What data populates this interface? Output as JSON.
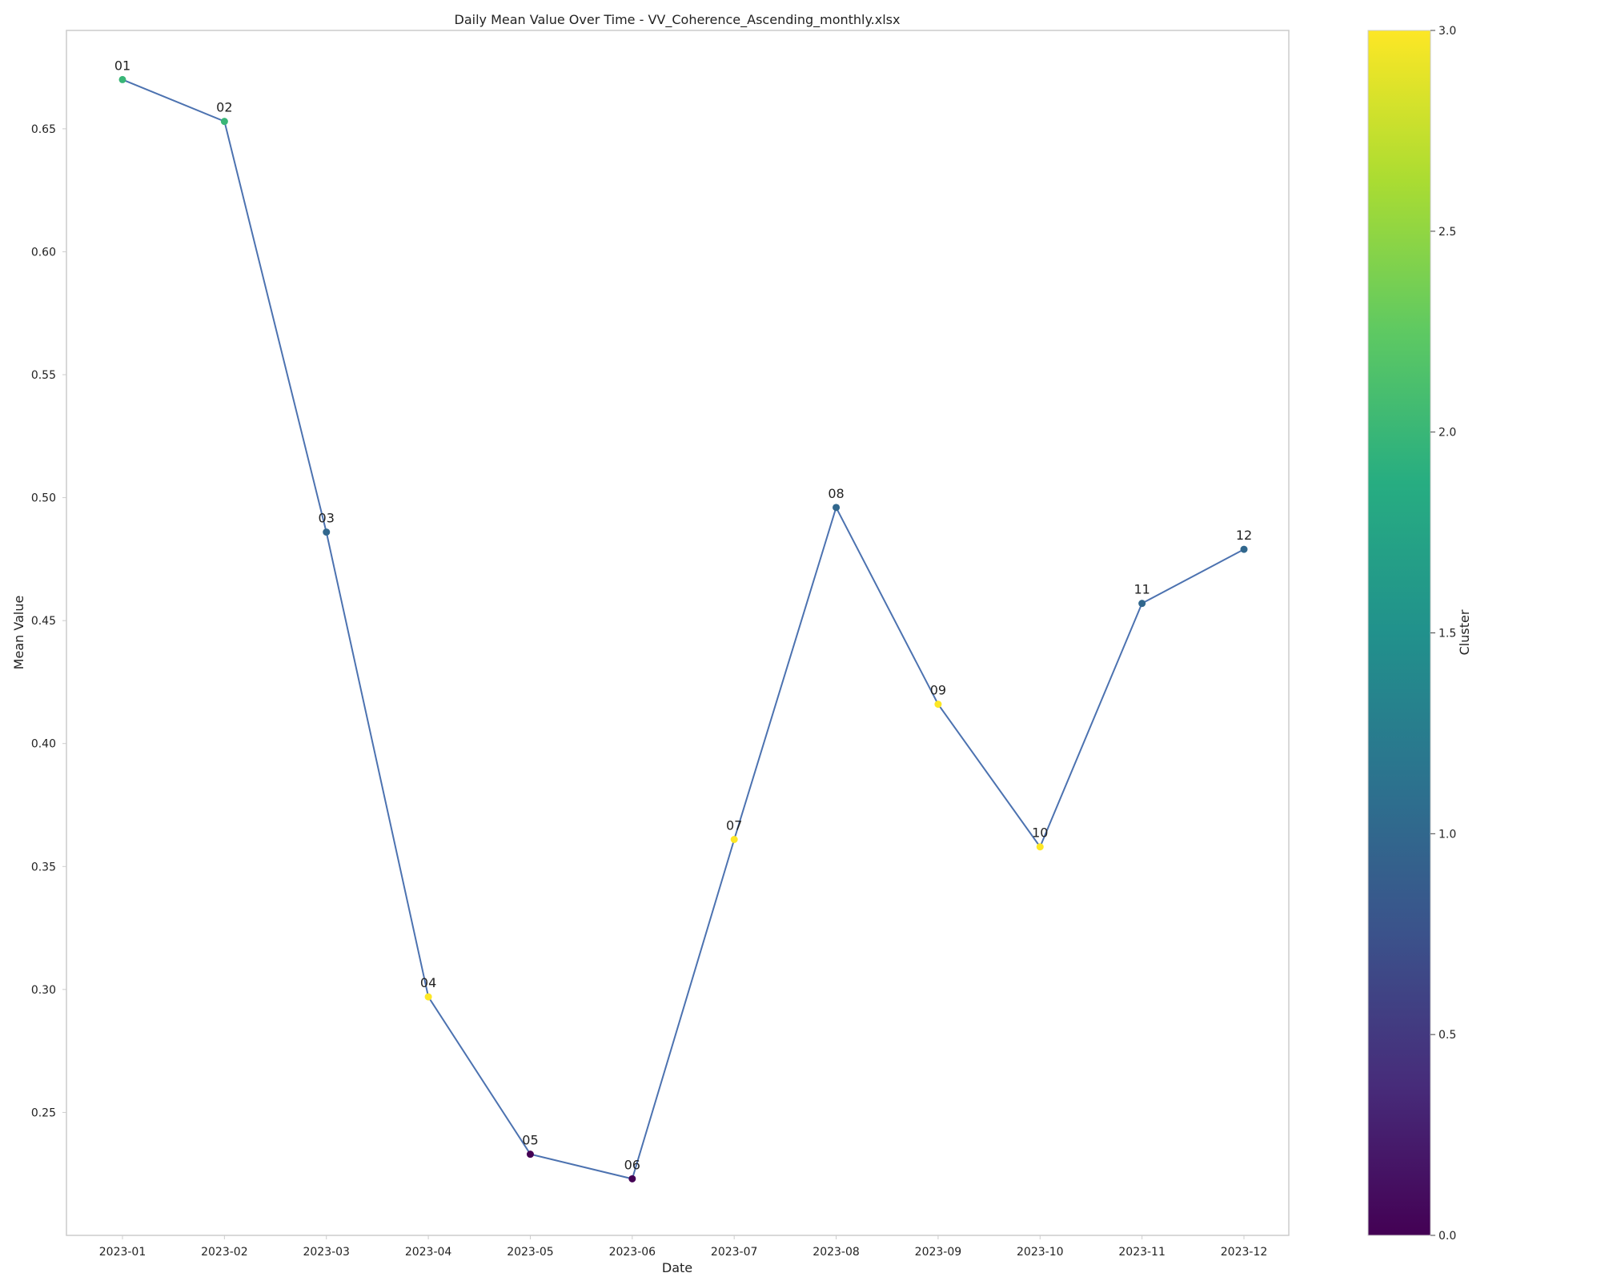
{
  "chart_data": {
    "type": "line",
    "title": "Daily Mean Value Over Time - VV_Coherence_Ascending_monthly.xlsx",
    "xlabel": "Date",
    "ylabel": "Mean Value",
    "x": [
      "2023-01",
      "2023-02",
      "2023-03",
      "2023-04",
      "2023-05",
      "2023-06",
      "2023-07",
      "2023-08",
      "2023-09",
      "2023-10",
      "2023-11",
      "2023-12"
    ],
    "point_labels": [
      "01",
      "02",
      "03",
      "04",
      "05",
      "06",
      "07",
      "08",
      "09",
      "10",
      "11",
      "12"
    ],
    "values": [
      0.67,
      0.653,
      0.486,
      0.297,
      0.233,
      0.223,
      0.361,
      0.496,
      0.416,
      0.358,
      0.457,
      0.479
    ],
    "clusters": [
      2,
      2,
      1,
      3,
      0,
      0,
      3,
      1,
      3,
      3,
      1,
      1
    ],
    "ylim": [
      0.2,
      0.69
    ],
    "yticks": [
      0.25,
      0.3,
      0.35,
      0.4,
      0.45,
      0.5,
      0.55,
      0.6,
      0.65
    ],
    "grid": false,
    "line_color": "#4c72b0",
    "colorbar": {
      "label": "Cluster",
      "range": [
        0,
        3
      ],
      "ticks": [
        0.0,
        0.5,
        1.0,
        1.5,
        2.0,
        2.5,
        3.0
      ],
      "colormap": "viridis"
    }
  }
}
